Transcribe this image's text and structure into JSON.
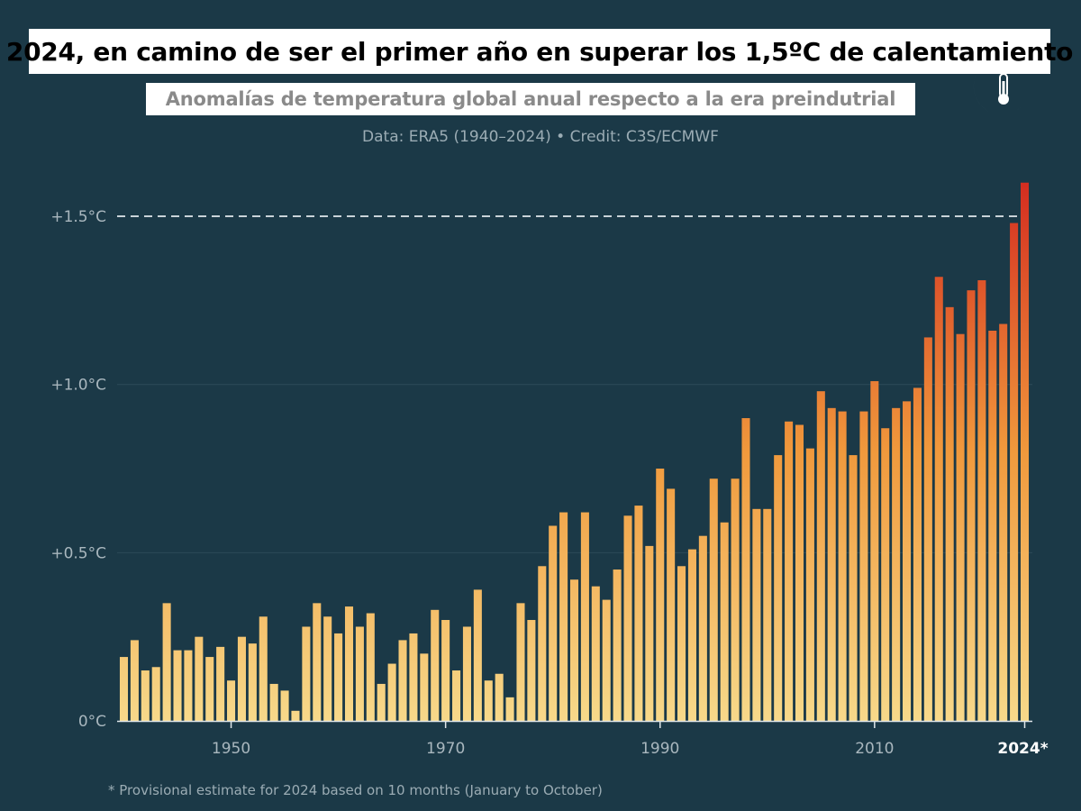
{
  "header": {
    "title": "2024, en camino de ser el primer año en superar los 1,5ºC de calentamiento",
    "subtitle": "Anomalías de temperatura global anual respecto a la era preindutrial",
    "source": "Data: ERA5 (1940–2024) • Credit: C3S/ECMWF"
  },
  "footnote": "* Provisional estimate for 2024 based on 10 months (January to October)",
  "logo": {
    "icon": "thermometer-moon-icon"
  },
  "colors": {
    "background": "#1b3947",
    "bar_low": "#f7d98a",
    "bar_mid": "#f0993c",
    "bar_high": "#d42d20",
    "threshold_line": "#c9d3d8",
    "grid": "#2c4b59",
    "axis": "#dfe6e9"
  },
  "chart_data": {
    "type": "bar",
    "title": "Anomalías de temperatura global anual respecto a la era preindutrial",
    "xlabel": "",
    "ylabel": "",
    "ylim": [
      0,
      1.6
    ],
    "x": [
      1940,
      1941,
      1942,
      1943,
      1944,
      1945,
      1946,
      1947,
      1948,
      1949,
      1950,
      1951,
      1952,
      1953,
      1954,
      1955,
      1956,
      1957,
      1958,
      1959,
      1960,
      1961,
      1962,
      1963,
      1964,
      1965,
      1966,
      1967,
      1968,
      1969,
      1970,
      1971,
      1972,
      1973,
      1974,
      1975,
      1976,
      1977,
      1978,
      1979,
      1980,
      1981,
      1982,
      1983,
      1984,
      1985,
      1986,
      1987,
      1988,
      1989,
      1990,
      1991,
      1992,
      1993,
      1994,
      1995,
      1996,
      1997,
      1998,
      1999,
      2000,
      2001,
      2002,
      2003,
      2004,
      2005,
      2006,
      2007,
      2008,
      2009,
      2010,
      2011,
      2012,
      2013,
      2014,
      2015,
      2016,
      2017,
      2018,
      2019,
      2020,
      2021,
      2022,
      2023,
      2024
    ],
    "values": [
      0.19,
      0.24,
      0.15,
      0.16,
      0.35,
      0.21,
      0.21,
      0.25,
      0.19,
      0.22,
      0.12,
      0.25,
      0.23,
      0.31,
      0.11,
      0.09,
      0.03,
      0.28,
      0.35,
      0.31,
      0.26,
      0.34,
      0.28,
      0.32,
      0.11,
      0.17,
      0.24,
      0.26,
      0.2,
      0.33,
      0.3,
      0.15,
      0.28,
      0.39,
      0.12,
      0.14,
      0.07,
      0.35,
      0.3,
      0.46,
      0.58,
      0.62,
      0.42,
      0.62,
      0.4,
      0.36,
      0.45,
      0.61,
      0.64,
      0.52,
      0.75,
      0.69,
      0.46,
      0.51,
      0.55,
      0.72,
      0.59,
      0.72,
      0.9,
      0.63,
      0.63,
      0.79,
      0.89,
      0.88,
      0.81,
      0.98,
      0.93,
      0.92,
      0.79,
      0.92,
      1.01,
      0.87,
      0.93,
      0.95,
      0.99,
      1.14,
      1.32,
      1.23,
      1.15,
      1.28,
      1.31,
      1.16,
      1.18,
      1.48,
      1.6
    ],
    "y_ticks": [
      {
        "value": 0,
        "label": "0°C"
      },
      {
        "value": 0.5,
        "label": "+0.5°C"
      },
      {
        "value": 1.0,
        "label": "+1.0°C"
      },
      {
        "value": 1.5,
        "label": "+1.5°C"
      }
    ],
    "x_ticks": [
      {
        "value": 1950,
        "label": "1950"
      },
      {
        "value": 1970,
        "label": "1970"
      },
      {
        "value": 1990,
        "label": "1990"
      },
      {
        "value": 2010,
        "label": "2010"
      },
      {
        "value": 2024,
        "label": "2024*",
        "bold": true
      }
    ],
    "threshold": {
      "value": 1.5,
      "style": "dashed"
    },
    "legend": "none"
  }
}
